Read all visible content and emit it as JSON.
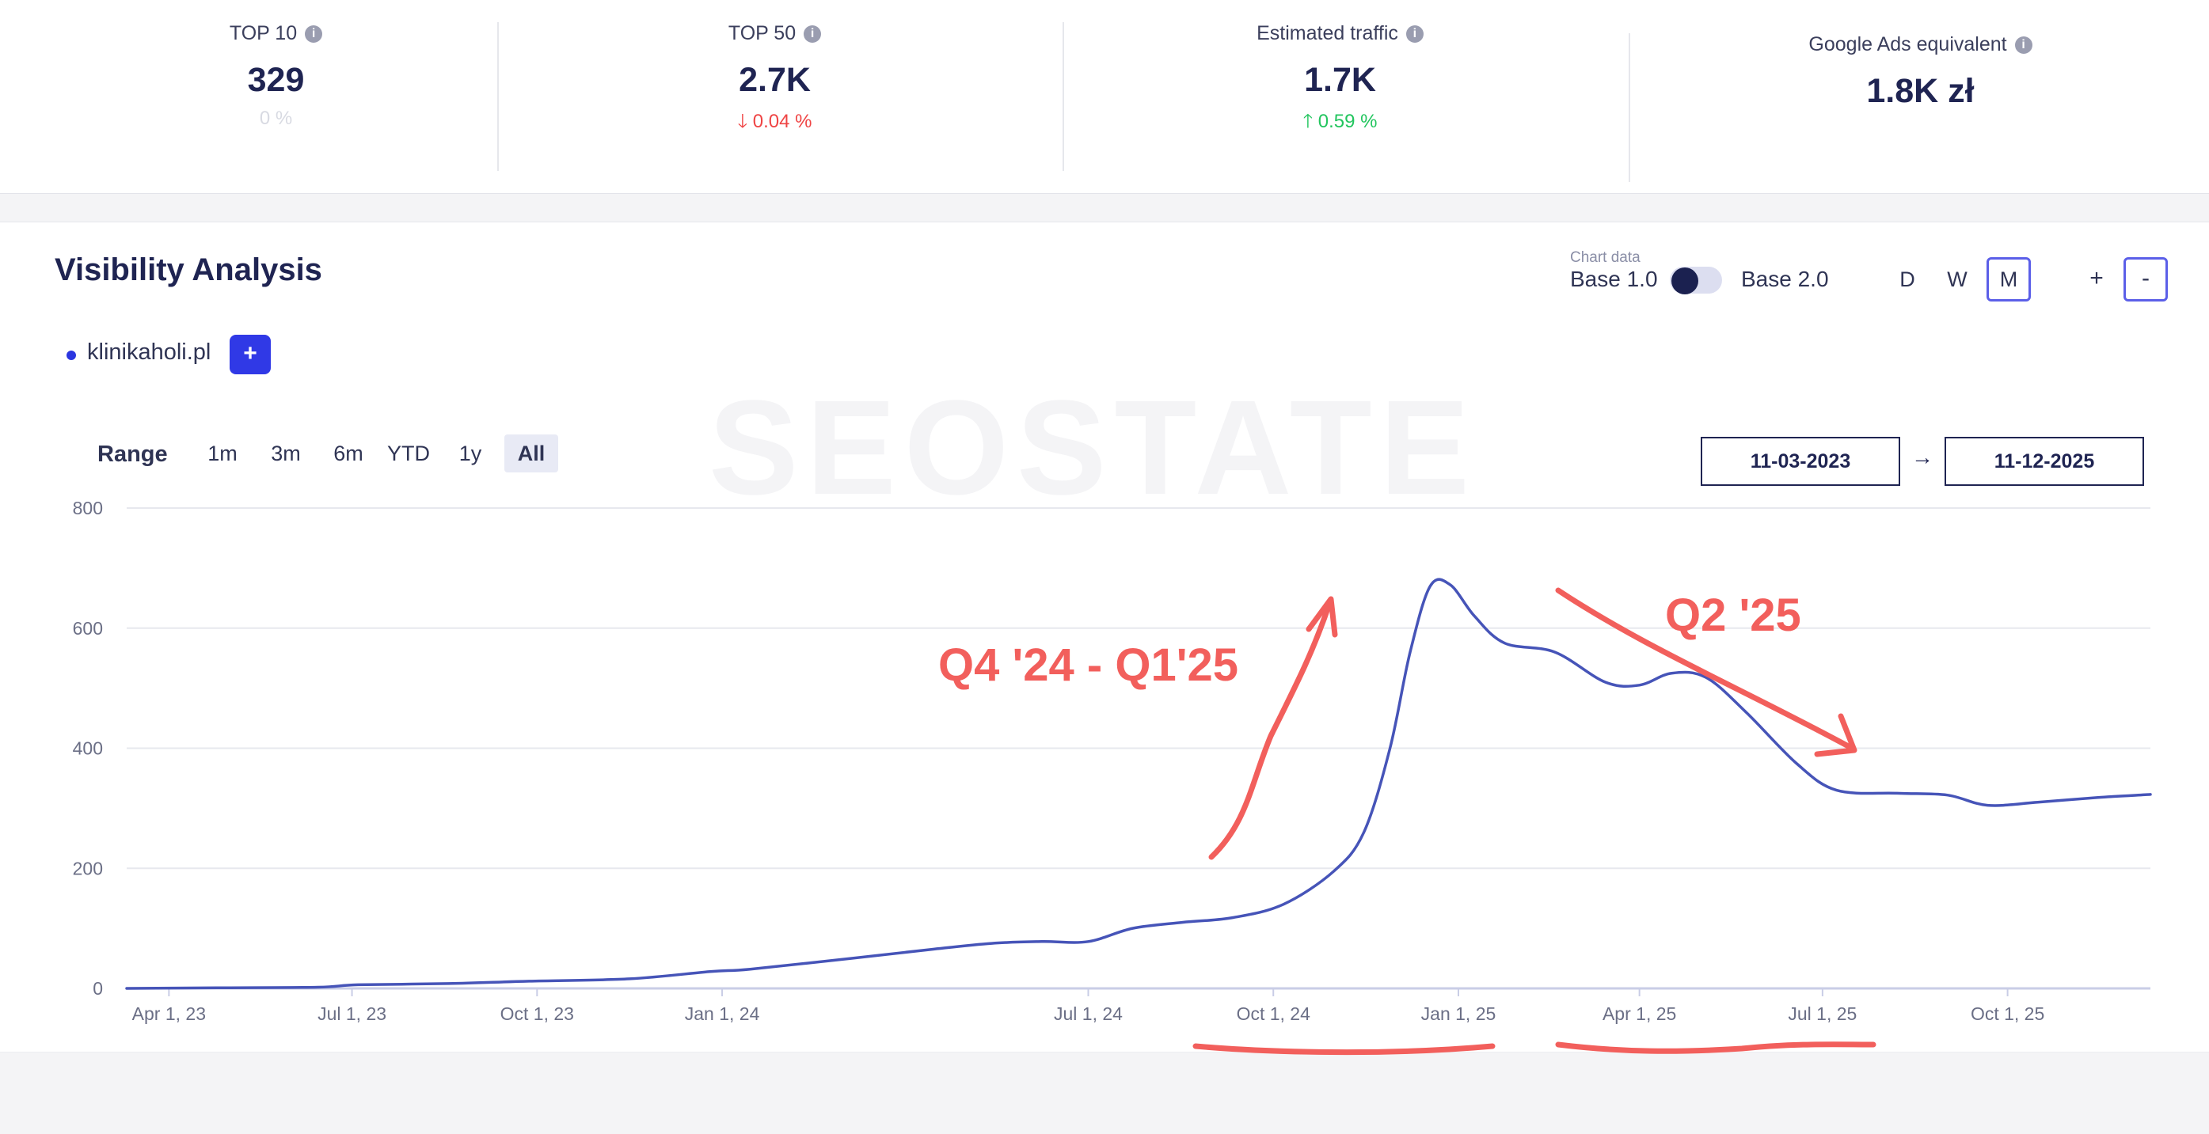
{
  "metrics": [
    {
      "label": "TOP 10",
      "value": "329",
      "change": "0 %",
      "direction": "neutral"
    },
    {
      "label": "TOP 50",
      "value": "2.7K",
      "change": "0.04 %",
      "direction": "down"
    },
    {
      "label": "Estimated traffic",
      "value": "1.7K",
      "change": "0.59 %",
      "direction": "up"
    },
    {
      "label": "Google Ads equivalent",
      "value": "1.8K zł"
    }
  ],
  "panel": {
    "title": "Visibility Analysis",
    "chart_data_label": "Chart data",
    "base_left": "Base 1.0",
    "base_right": "Base 2.0",
    "granularity": [
      "D",
      "W",
      "M"
    ],
    "granularity_active": "M",
    "zoom_in": "+",
    "zoom_out": "-",
    "series_label": "klinikaholi.pl",
    "add_series": "+",
    "range_label": "Range",
    "ranges": [
      "1m",
      "3m",
      "6m",
      "YTD",
      "1y",
      "All"
    ],
    "range_active": "All",
    "date_from": "11-03-2023",
    "date_arrow": "→",
    "date_to": "11-12-2025",
    "watermark": "SEOSTATE"
  },
  "chart_data": {
    "type": "line",
    "title": "Visibility Analysis",
    "series_name": "klinikaholi.pl",
    "ylim": [
      0,
      800
    ],
    "yticks": [
      0,
      200,
      400,
      600,
      800
    ],
    "xticks": [
      "Apr 1, 23",
      "Jul 1, 23",
      "Oct 1, 23",
      "Jan 1, 24",
      "Jul 1, 24",
      "Oct 1, 24",
      "Jan 1, 25",
      "Apr 1, 25",
      "Jul 1, 25",
      "Oct 1, 25"
    ],
    "xticks_day": [
      21,
      112,
      204,
      296,
      478,
      570,
      662,
      752,
      843,
      935
    ],
    "x_day_start": 0,
    "x_day_end": 1006,
    "points": [
      {
        "day": 0,
        "v": 0
      },
      {
        "day": 45,
        "v": 1
      },
      {
        "day": 95,
        "v": 2
      },
      {
        "day": 115,
        "v": 6
      },
      {
        "day": 160,
        "v": 8
      },
      {
        "day": 200,
        "v": 12
      },
      {
        "day": 250,
        "v": 16
      },
      {
        "day": 290,
        "v": 28
      },
      {
        "day": 310,
        "v": 32
      },
      {
        "day": 360,
        "v": 50
      },
      {
        "day": 400,
        "v": 65
      },
      {
        "day": 430,
        "v": 75
      },
      {
        "day": 455,
        "v": 78
      },
      {
        "day": 478,
        "v": 78
      },
      {
        "day": 500,
        "v": 100
      },
      {
        "day": 525,
        "v": 110
      },
      {
        "day": 550,
        "v": 118
      },
      {
        "day": 575,
        "v": 140
      },
      {
        "day": 600,
        "v": 195
      },
      {
        "day": 615,
        "v": 260
      },
      {
        "day": 628,
        "v": 400
      },
      {
        "day": 638,
        "v": 560
      },
      {
        "day": 648,
        "v": 670
      },
      {
        "day": 658,
        "v": 672
      },
      {
        "day": 670,
        "v": 620
      },
      {
        "day": 685,
        "v": 575
      },
      {
        "day": 710,
        "v": 560
      },
      {
        "day": 735,
        "v": 510
      },
      {
        "day": 752,
        "v": 505
      },
      {
        "day": 768,
        "v": 525
      },
      {
        "day": 785,
        "v": 518
      },
      {
        "day": 805,
        "v": 460
      },
      {
        "day": 830,
        "v": 375
      },
      {
        "day": 850,
        "v": 330
      },
      {
        "day": 880,
        "v": 325
      },
      {
        "day": 905,
        "v": 322
      },
      {
        "day": 925,
        "v": 305
      },
      {
        "day": 950,
        "v": 310
      },
      {
        "day": 980,
        "v": 318
      },
      {
        "day": 1006,
        "v": 323
      }
    ],
    "annotations": [
      {
        "text": "Q4 '24 - Q1'25",
        "color": "#f25f5c"
      },
      {
        "text": "Q2 '25",
        "color": "#f25f5c"
      }
    ],
    "line_color": "#4654b8"
  }
}
